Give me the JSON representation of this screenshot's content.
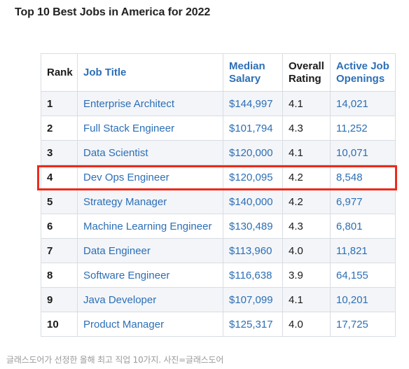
{
  "title": "Top 10 Best Jobs in America for 2022",
  "table": {
    "headers": {
      "rank": "Rank",
      "job_title": "Job Title",
      "median_salary": "Median Salary",
      "overall_rating": "Overall Rating",
      "active_openings": "Active Job Openings"
    },
    "rows": [
      {
        "rank": "1",
        "title": "Enterprise Architect",
        "salary": "$144,997",
        "rating": "4.1",
        "openings": "14,021"
      },
      {
        "rank": "2",
        "title": "Full Stack Engineer",
        "salary": "$101,794",
        "rating": "4.3",
        "openings": "11,252"
      },
      {
        "rank": "3",
        "title": "Data Scientist",
        "salary": "$120,000",
        "rating": "4.1",
        "openings": "10,071"
      },
      {
        "rank": "4",
        "title": "Dev Ops Engineer",
        "salary": "$120,095",
        "rating": "4.2",
        "openings": "8,548"
      },
      {
        "rank": "5",
        "title": "Strategy Manager",
        "salary": "$140,000",
        "rating": "4.2",
        "openings": "6,977"
      },
      {
        "rank": "6",
        "title": "Machine Learning Engineer",
        "salary": "$130,489",
        "rating": "4.3",
        "openings": "6,801"
      },
      {
        "rank": "7",
        "title": "Data Engineer",
        "salary": "$113,960",
        "rating": "4.0",
        "openings": "11,821"
      },
      {
        "rank": "8",
        "title": "Software Engineer",
        "salary": "$116,638",
        "rating": "3.9",
        "openings": "64,155"
      },
      {
        "rank": "9",
        "title": "Java Developer",
        "salary": "$107,099",
        "rating": "4.1",
        "openings": "10,201"
      },
      {
        "rank": "10",
        "title": "Product Manager",
        "salary": "$125,317",
        "rating": "4.0",
        "openings": "17,725"
      }
    ]
  },
  "highlight": {
    "row_rank": "4",
    "color": "#ee2a1b"
  },
  "colors": {
    "link_blue": "#2c6fb6",
    "row_stripe": "#f3f5f8",
    "border": "#d8dde3"
  },
  "caption": "글래스도어가 선정한 올해 최고 직업 10가지. 사진=글래스도어"
}
